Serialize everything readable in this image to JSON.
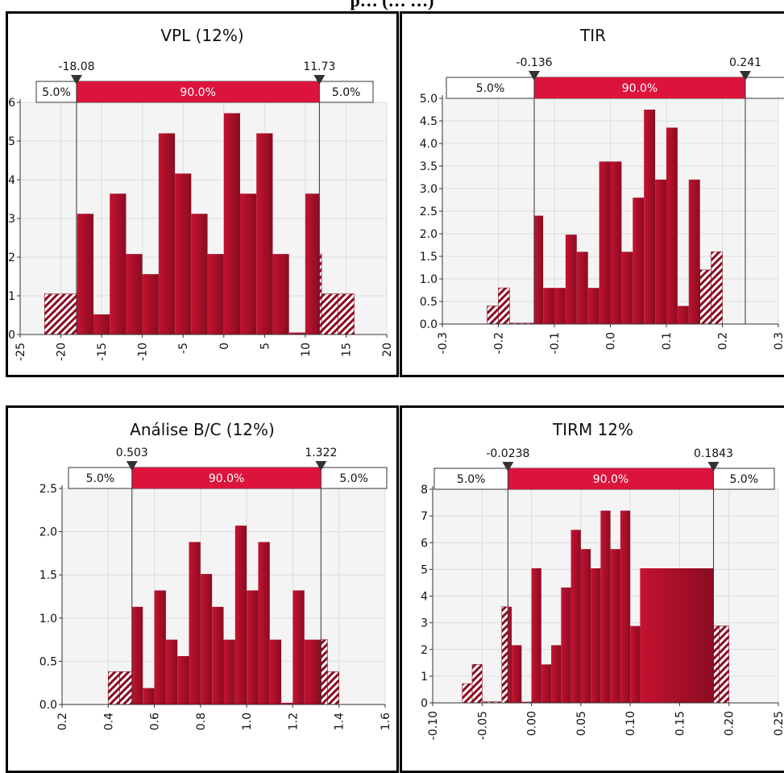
{
  "page_title": "p… (… …)",
  "colors": {
    "bar_fill": "#c41230",
    "bar_dark": "#8a0c22",
    "band_fill": "#dc143c",
    "plot_bg": "#f4f4f4",
    "grid": "#dcdcdc"
  },
  "chart_data": [
    {
      "type": "bar",
      "title": "VPL (12%)",
      "left_marker": "-18.08",
      "right_marker": "11.73",
      "left_pct": "5.0%",
      "mid_pct": "90.0%",
      "right_pct": "5.0%",
      "xlim": [
        -25,
        20
      ],
      "ylim": [
        0,
        6
      ],
      "x_ticks": [
        -25,
        -20,
        -15,
        -10,
        -5,
        0,
        5,
        10,
        15,
        20
      ],
      "x_tick_labels": [
        "-25",
        "-20",
        "-15",
        "-10",
        "-5",
        "0",
        "5",
        "10",
        "15",
        "20"
      ],
      "y_ticks": [
        0,
        1,
        2,
        3,
        4,
        5,
        6
      ],
      "y_tick_labels": [
        "0",
        "1",
        "2",
        "3",
        "4",
        "5",
        "6"
      ],
      "bin_width": 2,
      "bins": [
        {
          "x": -22.0,
          "y": 1.05,
          "tail": true
        },
        {
          "x": -18.08,
          "y": 1.05,
          "tail": true
        },
        {
          "x": -18.0,
          "y": 3.12
        },
        {
          "x": -16.0,
          "y": 0.52
        },
        {
          "x": -14.0,
          "y": 3.64
        },
        {
          "x": -12.0,
          "y": 2.08
        },
        {
          "x": -10.0,
          "y": 1.56
        },
        {
          "x": -8.0,
          "y": 5.2
        },
        {
          "x": -6.0,
          "y": 4.16
        },
        {
          "x": -4.0,
          "y": 3.12
        },
        {
          "x": -2.0,
          "y": 2.08
        },
        {
          "x": 0.0,
          "y": 5.72
        },
        {
          "x": 2.0,
          "y": 3.64
        },
        {
          "x": 4.0,
          "y": 5.2
        },
        {
          "x": 6.0,
          "y": 2.08
        },
        {
          "x": 8.0,
          "y": 0.05
        },
        {
          "x": 10.0,
          "y": 3.64
        },
        {
          "x": 11.73,
          "y": 2.08,
          "tail": true
        },
        {
          "x": 12.0,
          "y": 1.05,
          "tail": true
        },
        {
          "x": 14.0,
          "y": 1.05,
          "tail": true
        }
      ]
    },
    {
      "type": "bar",
      "title": "TIR",
      "left_marker": "-0.136",
      "right_marker": "0.241",
      "left_pct": "5.0%",
      "mid_pct": "90.0%",
      "right_pct": "",
      "xlim": [
        -0.3,
        0.3
      ],
      "ylim": [
        0,
        5
      ],
      "x_ticks": [
        -0.3,
        -0.2,
        -0.1,
        0.0,
        0.1,
        0.2,
        0.3
      ],
      "x_tick_labels": [
        "-0.3",
        "-0.2",
        "-0.1",
        "0.0",
        "0.1",
        "0.2",
        "0.3"
      ],
      "y_ticks": [
        0,
        0.5,
        1.0,
        1.5,
        2.0,
        2.5,
        3.0,
        3.5,
        4.0,
        4.5,
        5.0
      ],
      "y_tick_labels": [
        "0.0",
        "0.5",
        "1.0",
        "1.5",
        "2.0",
        "2.5",
        "3.0",
        "3.5",
        "4.0",
        "4.5",
        "5.0"
      ],
      "bin_width": 0.02,
      "bins": [
        {
          "x": -0.22,
          "y": 0.4,
          "tail": true
        },
        {
          "x": -0.2,
          "y": 0.8,
          "tail": true
        },
        {
          "x": -0.18,
          "y": 0.02,
          "tail": true
        },
        {
          "x": -0.136,
          "y": 2.4
        },
        {
          "x": -0.12,
          "y": 0.8
        },
        {
          "x": -0.1,
          "y": 0.8
        },
        {
          "x": -0.08,
          "y": 1.98
        },
        {
          "x": -0.06,
          "y": 1.6
        },
        {
          "x": -0.04,
          "y": 0.8
        },
        {
          "x": -0.02,
          "y": 3.6
        },
        {
          "x": 0.0,
          "y": 3.6
        },
        {
          "x": 0.02,
          "y": 1.6
        },
        {
          "x": 0.04,
          "y": 2.8
        },
        {
          "x": 0.06,
          "y": 4.75
        },
        {
          "x": 0.08,
          "y": 3.2
        },
        {
          "x": 0.1,
          "y": 4.35
        },
        {
          "x": 0.12,
          "y": 0.4
        },
        {
          "x": 0.14,
          "y": 3.2
        },
        {
          "x": 0.16,
          "y": 1.2,
          "tail": true
        },
        {
          "x": 0.18,
          "y": 1.6,
          "tail": true
        }
      ]
    },
    {
      "type": "bar",
      "title": "Análise B/C (12%)",
      "left_marker": "0.503",
      "right_marker": "1.322",
      "left_pct": "5.0%",
      "mid_pct": "90.0%",
      "right_pct": "5.0%",
      "xlim": [
        0.2,
        1.6
      ],
      "ylim": [
        0,
        2.5
      ],
      "x_ticks": [
        0.2,
        0.4,
        0.6,
        0.8,
        1.0,
        1.2,
        1.4,
        1.6
      ],
      "x_tick_labels": [
        "0.2",
        "0.4",
        "0.6",
        "0.8",
        "1.0",
        "1.2",
        "1.4",
        "1.6"
      ],
      "y_ticks": [
        0,
        0.5,
        1.0,
        1.5,
        2.0,
        2.5
      ],
      "y_tick_labels": [
        "0.0",
        "0.5",
        "1.0",
        "1.5",
        "2.0",
        "2.5"
      ],
      "bin_width": 0.05,
      "bins": [
        {
          "x": 0.4,
          "y": 0.38,
          "tail": true
        },
        {
          "x": 0.45,
          "y": 0.38,
          "tail": true
        },
        {
          "x": 0.503,
          "y": 1.13
        },
        {
          "x": 0.55,
          "y": 0.19
        },
        {
          "x": 0.6,
          "y": 1.32
        },
        {
          "x": 0.65,
          "y": 0.75
        },
        {
          "x": 0.7,
          "y": 0.56
        },
        {
          "x": 0.75,
          "y": 1.88
        },
        {
          "x": 0.8,
          "y": 1.51
        },
        {
          "x": 0.85,
          "y": 1.13
        },
        {
          "x": 0.9,
          "y": 0.75
        },
        {
          "x": 0.95,
          "y": 2.07
        },
        {
          "x": 1.0,
          "y": 1.32
        },
        {
          "x": 1.05,
          "y": 1.88
        },
        {
          "x": 1.1,
          "y": 0.75
        },
        {
          "x": 1.15,
          "y": 0.02
        },
        {
          "x": 1.2,
          "y": 1.32
        },
        {
          "x": 1.25,
          "y": 0.75
        },
        {
          "x": 1.322,
          "y": 0.75,
          "tail": true
        },
        {
          "x": 1.35,
          "y": 0.38,
          "tail": true
        }
      ]
    },
    {
      "type": "bar",
      "title": "TIRM 12%",
      "left_marker": "-0.0238",
      "right_marker": "0.1843",
      "left_pct": "5.0%",
      "mid_pct": "90.0%",
      "right_pct": "5.0%",
      "xlim": [
        -0.1,
        0.25
      ],
      "ylim": [
        0,
        8
      ],
      "x_ticks": [
        -0.1,
        -0.05,
        0.0,
        0.05,
        0.1,
        0.15,
        0.2,
        0.25
      ],
      "x_tick_labels": [
        "-0.10",
        "-0.05",
        "0.00",
        "0.05",
        "0.10",
        "0.15",
        "0.20",
        "0.25"
      ],
      "y_ticks": [
        0,
        1,
        2,
        3,
        4,
        5,
        6,
        7,
        8
      ],
      "y_tick_labels": [
        "0",
        "1",
        "2",
        "3",
        "4",
        "5",
        "6",
        "7",
        "8"
      ],
      "bin_width": 0.01,
      "bins": [
        {
          "x": -0.07,
          "y": 0.72,
          "tail": true
        },
        {
          "x": -0.06,
          "y": 1.44,
          "tail": true
        },
        {
          "x": -0.05,
          "y": 0.04,
          "tail": true
        },
        {
          "x": -0.03,
          "y": 3.6,
          "tail": true
        },
        {
          "x": -0.0238,
          "y": 3.6
        },
        {
          "x": -0.02,
          "y": 2.16
        },
        {
          "x": -0.01,
          "y": 0.04
        },
        {
          "x": 0.0,
          "y": 5.04
        },
        {
          "x": 0.01,
          "y": 1.44
        },
        {
          "x": 0.02,
          "y": 2.16
        },
        {
          "x": 0.03,
          "y": 4.32
        },
        {
          "x": 0.04,
          "y": 6.48
        },
        {
          "x": 0.05,
          "y": 5.76
        },
        {
          "x": 0.06,
          "y": 5.04
        },
        {
          "x": 0.07,
          "y": 7.2
        },
        {
          "x": 0.08,
          "y": 5.76
        },
        {
          "x": 0.09,
          "y": 7.2
        },
        {
          "x": 0.1,
          "y": 2.88
        },
        {
          "x": 0.11,
          "y": 5.04
        },
        {
          "x": 0.1843,
          "y": 2.88,
          "tail": true
        },
        {
          "x": 0.19,
          "y": 2.88,
          "tail": true
        }
      ]
    }
  ]
}
